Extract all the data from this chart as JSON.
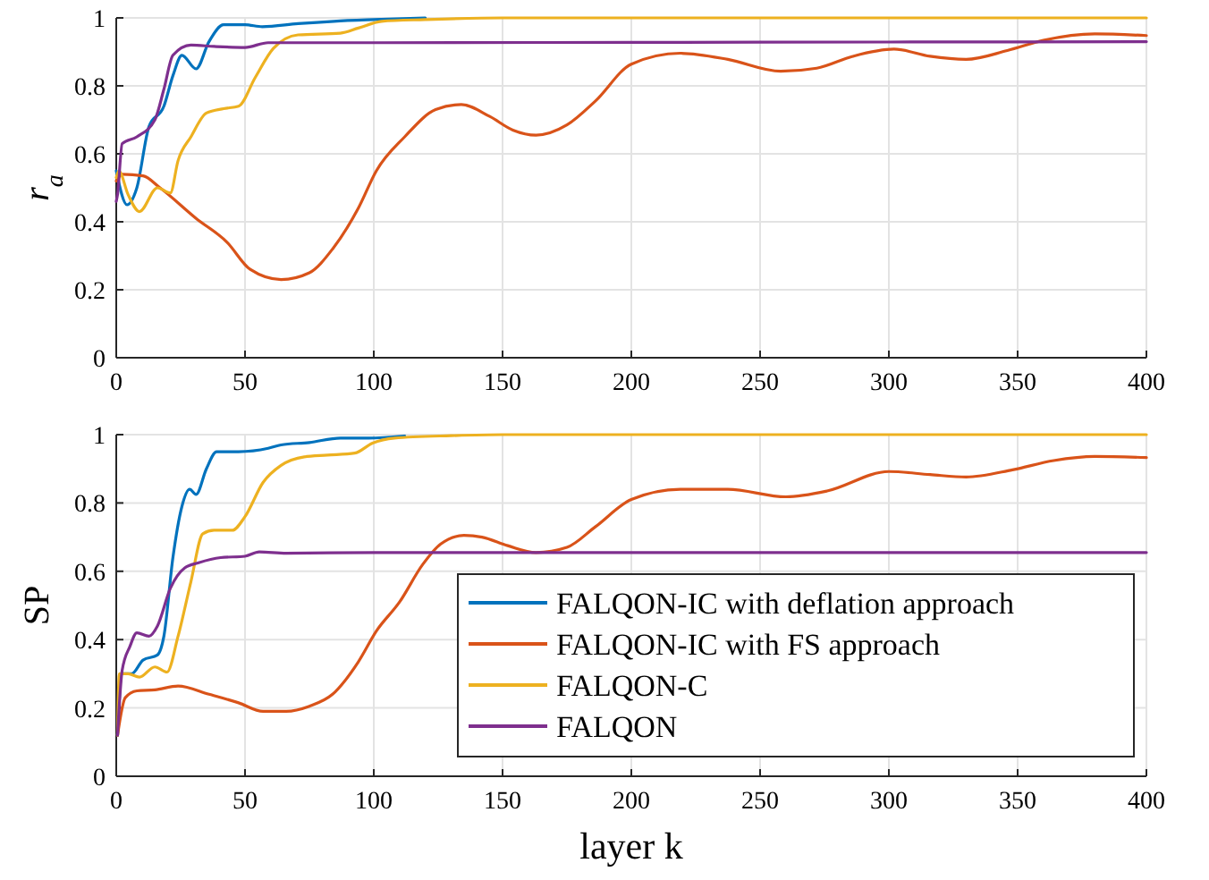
{
  "chart_data": [
    {
      "type": "line",
      "ylabel": "r$_{a}$",
      "xlim": [
        0,
        400
      ],
      "ylim": [
        0,
        1
      ],
      "xticks": [
        0,
        50,
        100,
        150,
        200,
        250,
        300,
        350,
        400
      ],
      "yticks": [
        0,
        0.2,
        0.4,
        0.6,
        0.8,
        1
      ],
      "grid": true,
      "legend": false,
      "line_style": "solid",
      "series": [
        {
          "color": "#0072bd",
          "x": [
            0,
            4.2,
            8,
            12.7,
            18.5,
            22,
            25.5,
            31,
            36,
            41.7,
            50,
            56.7,
            70.6,
            84.5,
            100,
            120
          ],
          "values": [
            0.55,
            0.45,
            0.5,
            0.68,
            0.74,
            0.83,
            0.89,
            0.85,
            0.93,
            0.98,
            0.98,
            0.974,
            0.983,
            0.99,
            0.995,
            1
          ]
        },
        {
          "color": "#d95319",
          "x": [
            0,
            2.3,
            10.4,
            17,
            31,
            43,
            52,
            64,
            75,
            84,
            94,
            101,
            112,
            124,
            134,
            145,
            154,
            163,
            175,
            186,
            200,
            219,
            237.5,
            258,
            272,
            286,
            302,
            316,
            330,
            346,
            360,
            380,
            400
          ],
          "values": [
            0.52,
            0.54,
            0.535,
            0.5,
            0.41,
            0.34,
            0.26,
            0.23,
            0.25,
            0.32,
            0.44,
            0.55,
            0.65,
            0.73,
            0.745,
            0.71,
            0.67,
            0.655,
            0.685,
            0.755,
            0.864,
            0.896,
            0.878,
            0.843,
            0.852,
            0.887,
            0.908,
            0.887,
            0.878,
            0.904,
            0.934,
            0.953,
            0.948
          ]
        },
        {
          "color": "#edb120",
          "x": [
            0,
            1,
            4.6,
            9,
            16,
            21,
            24,
            29,
            35,
            41.7,
            47.5,
            54,
            61,
            70.6,
            87,
            94,
            103,
            120,
            150,
            200,
            300,
            400
          ],
          "values": [
            0.53,
            0.55,
            0.48,
            0.43,
            0.5,
            0.485,
            0.58,
            0.65,
            0.72,
            0.733,
            0.74,
            0.825,
            0.91,
            0.95,
            0.955,
            0.97,
            0.99,
            0.995,
            1,
            1,
            1,
            1
          ]
        },
        {
          "color": "#7e2f8e",
          "x": [
            0,
            0.5,
            2.3,
            8,
            15,
            18.5,
            22,
            29,
            38,
            50,
            59,
            100,
            200,
            300,
            400
          ],
          "values": [
            0.46,
            0.48,
            0.63,
            0.65,
            0.7,
            0.79,
            0.89,
            0.92,
            0.916,
            0.913,
            0.927,
            0.927,
            0.928,
            0.929,
            0.93
          ]
        }
      ]
    },
    {
      "type": "line",
      "xlabel": "layer k",
      "ylabel": "SP",
      "xlim": [
        0,
        400
      ],
      "ylim": [
        0,
        1
      ],
      "xticks": [
        0,
        50,
        100,
        150,
        200,
        250,
        300,
        350,
        400
      ],
      "yticks": [
        0,
        0.2,
        0.4,
        0.6,
        0.8,
        1
      ],
      "grid": true,
      "legend": "bottom right",
      "line_style": "solid",
      "series": [
        {
          "name": "FALQON-IC with deflation approach",
          "color": "#0072bd",
          "x": [
            0.5,
            2.3,
            6,
            10.4,
            16,
            18.5,
            22,
            25.5,
            28.5,
            31,
            35,
            39,
            47.5,
            59,
            64,
            75,
            87,
            98,
            112
          ],
          "values": [
            0.12,
            0.3,
            0.3,
            0.34,
            0.355,
            0.41,
            0.64,
            0.79,
            0.84,
            0.825,
            0.9,
            0.95,
            0.95,
            0.96,
            0.97,
            0.977,
            0.99,
            0.99,
            0.996
          ]
        },
        {
          "name": "FALQON-IC with FS approach",
          "color": "#d95319",
          "x": [
            0.5,
            3.5,
            8,
            15,
            24,
            36,
            47.5,
            57,
            66,
            75,
            84,
            94,
            101,
            110,
            119,
            126,
            135,
            142,
            152,
            163,
            175,
            186,
            200,
            219,
            237.5,
            260,
            276,
            300,
            316,
            330,
            348,
            364,
            380,
            400
          ],
          "values": [
            0.12,
            0.23,
            0.25,
            0.253,
            0.264,
            0.24,
            0.215,
            0.19,
            0.19,
            0.205,
            0.24,
            0.335,
            0.425,
            0.51,
            0.62,
            0.68,
            0.705,
            0.7,
            0.675,
            0.655,
            0.67,
            0.73,
            0.81,
            0.84,
            0.84,
            0.818,
            0.835,
            0.892,
            0.883,
            0.876,
            0.897,
            0.924,
            0.936,
            0.933
          ]
        },
        {
          "name": "FALQON-C",
          "color": "#edb120",
          "x": [
            0.5,
            1.2,
            4.6,
            9,
            15,
            19.7,
            24,
            29,
            33.6,
            38,
            45,
            50,
            57,
            64,
            73,
            82,
            92.6,
            99.5,
            108,
            130,
            150,
            200,
            300,
            400
          ],
          "values": [
            0.12,
            0.3,
            0.3,
            0.29,
            0.32,
            0.305,
            0.41,
            0.57,
            0.71,
            0.72,
            0.72,
            0.76,
            0.86,
            0.91,
            0.935,
            0.94,
            0.946,
            0.975,
            0.99,
            0.997,
            1,
            1,
            1,
            1
          ]
        },
        {
          "name": "FALQON",
          "color": "#7e2f8e",
          "x": [
            0.5,
            2.3,
            5.3,
            8,
            12.7,
            16,
            21,
            26.6,
            32,
            40.5,
            50,
            55.5,
            66,
            100,
            200,
            300,
            400
          ],
          "values": [
            0.12,
            0.31,
            0.38,
            0.42,
            0.41,
            0.44,
            0.55,
            0.61,
            0.625,
            0.64,
            0.644,
            0.657,
            0.653,
            0.655,
            0.655,
            0.655,
            0.655
          ]
        }
      ]
    }
  ]
}
